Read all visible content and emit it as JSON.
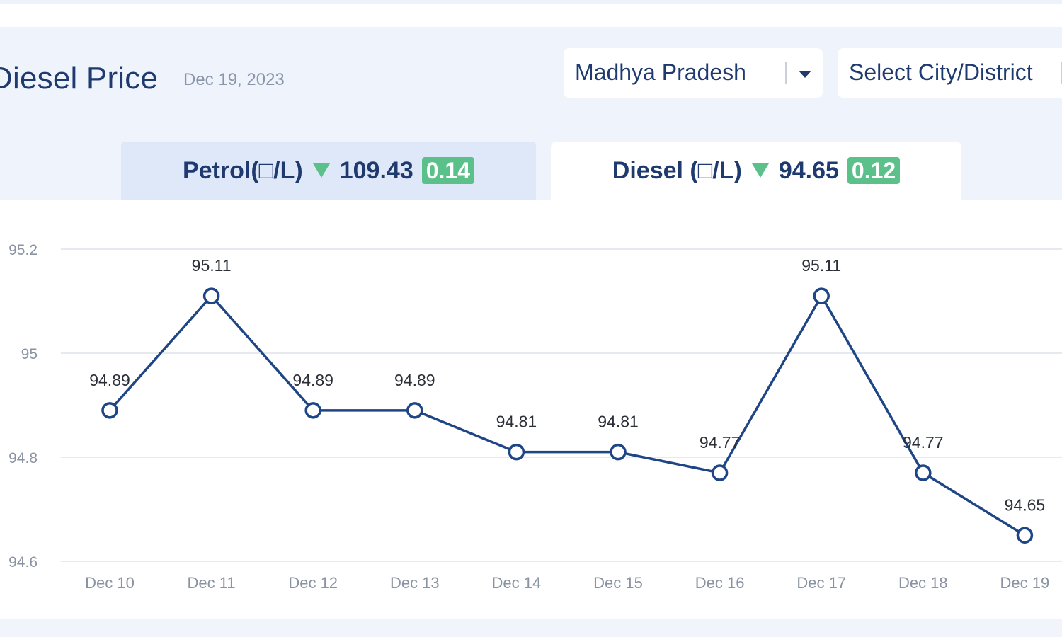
{
  "header": {
    "title": "Diesel Price",
    "date": "Dec 19, 2023",
    "state_select": {
      "value": "Madhya Pradesh"
    },
    "city_select": {
      "value": "Select City/District"
    }
  },
  "tabs": [
    {
      "label": "Petrol(□/L)",
      "price": "109.43",
      "change": "0.14",
      "trend": "down",
      "active": false
    },
    {
      "label": "Diesel (□/L)",
      "price": "94.65",
      "change": "0.12",
      "trend": "down",
      "active": true
    }
  ],
  "colors": {
    "line": "#1e4585",
    "badge": "#5cc08a",
    "grid": "#e6e9ee"
  },
  "chart_data": {
    "type": "line",
    "title": "",
    "xlabel": "",
    "ylabel": "",
    "categories": [
      "Dec 10",
      "Dec 11",
      "Dec 12",
      "Dec 13",
      "Dec 14",
      "Dec 15",
      "Dec 16",
      "Dec 17",
      "Dec 18",
      "Dec 19"
    ],
    "values": [
      94.89,
      95.11,
      94.89,
      94.89,
      94.81,
      94.81,
      94.77,
      95.11,
      94.77,
      94.65
    ],
    "data_labels": [
      "94.89",
      "95.11",
      "94.89",
      "94.89",
      "94.81",
      "94.81",
      "94.77",
      "95.11",
      "94.77",
      "94.65"
    ],
    "y_ticks": [
      "94.6",
      "94.8",
      "95",
      "95.2"
    ],
    "ylim": [
      94.6,
      95.2
    ],
    "grid": true,
    "legend": "none"
  }
}
